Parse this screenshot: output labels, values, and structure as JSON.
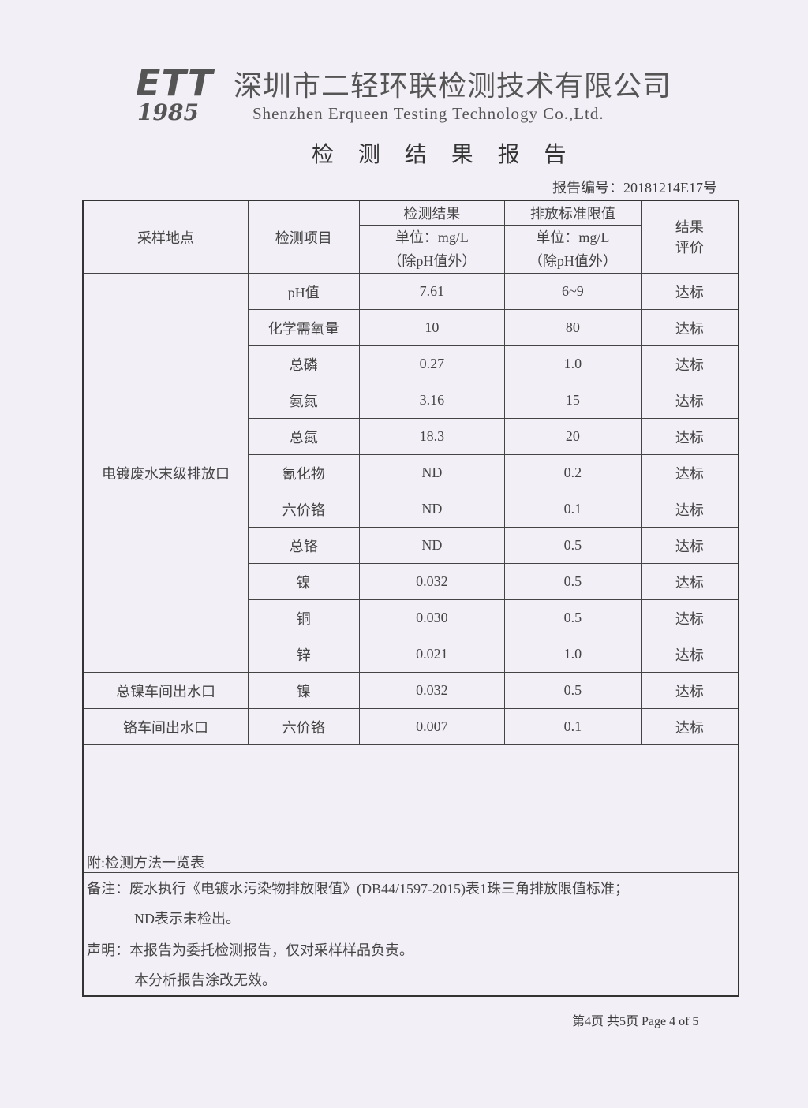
{
  "header": {
    "logo": "ETT",
    "logo_year": "1985",
    "company_cn": "深圳市二轻环联检测技术有限公司",
    "company_en": "Shenzhen Erqueen Testing Technology Co.,Ltd.",
    "title": "检 测 结 果 报 告",
    "report_no": "报告编号：20181214E17号"
  },
  "table": {
    "headers": {
      "site": "采样地点",
      "item": "检测项目",
      "result": "检测结果",
      "limit": "排放标准限值",
      "unit": "单位：mg/L",
      "unit_note": "（除pH值外）",
      "eval": "结果评价"
    },
    "groups": [
      {
        "site": "电镀废水末级排放口",
        "rows": [
          [
            "pH值",
            "7.61",
            "6~9",
            "达标"
          ],
          [
            "化学需氧量",
            "10",
            "80",
            "达标"
          ],
          [
            "总磷",
            "0.27",
            "1.0",
            "达标"
          ],
          [
            "氨氮",
            "3.16",
            "15",
            "达标"
          ],
          [
            "总氮",
            "18.3",
            "20",
            "达标"
          ],
          [
            "氰化物",
            "ND",
            "0.2",
            "达标"
          ],
          [
            "六价铬",
            "ND",
            "0.1",
            "达标"
          ],
          [
            "总铬",
            "ND",
            "0.5",
            "达标"
          ],
          [
            "镍",
            "0.032",
            "0.5",
            "达标"
          ],
          [
            "铜",
            "0.030",
            "0.5",
            "达标"
          ],
          [
            "锌",
            "0.021",
            "1.0",
            "达标"
          ]
        ]
      },
      {
        "site": "总镍车间出水口",
        "rows": [
          [
            "镍",
            "0.032",
            "0.5",
            "达标"
          ]
        ]
      },
      {
        "site": "铬车间出水口",
        "rows": [
          [
            "六价铬",
            "0.007",
            "0.1",
            "达标"
          ]
        ]
      }
    ],
    "appendix": "附:检测方法一览表",
    "remark_1": "备注：废水执行《电镀水污染物排放限值》(DB44/1597-2015)表1珠三角排放限值标准；",
    "remark_2": "ND表示未检出。",
    "statement_1": "声明：本报告为委托检测报告，仅对采样样品负责。",
    "statement_2": "本分析报告涂改无效。"
  },
  "footer": {
    "page": "第4页 共5页 Page 4 of 5"
  }
}
